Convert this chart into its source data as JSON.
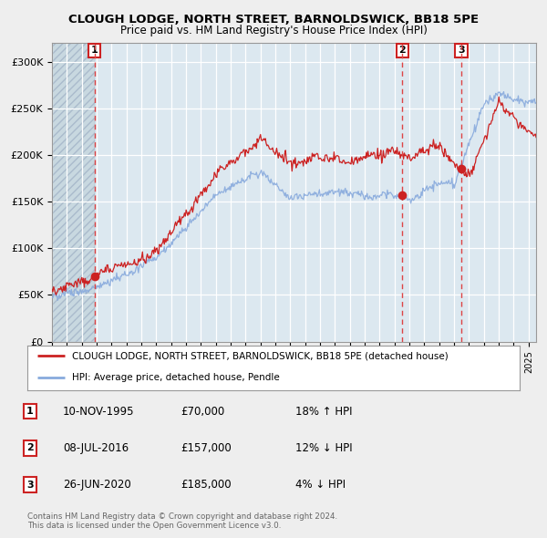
{
  "title": "CLOUGH LODGE, NORTH STREET, BARNOLDSWICK, BB18 5PE",
  "subtitle": "Price paid vs. HM Land Registry's House Price Index (HPI)",
  "ylim": [
    0,
    320000
  ],
  "yticks": [
    0,
    50000,
    100000,
    150000,
    200000,
    250000,
    300000
  ],
  "ytick_labels": [
    "£0",
    "£50K",
    "£100K",
    "£150K",
    "£200K",
    "£250K",
    "£300K"
  ],
  "sale_color": "#cc2222",
  "hpi_color": "#88aadd",
  "background_color": "#f0f0f0",
  "plot_bg_color": "#dce8f0",
  "grid_color": "#ffffff",
  "sale_points": [
    {
      "date": 1995.86,
      "price": 70000,
      "label": "1"
    },
    {
      "date": 2016.52,
      "price": 157000,
      "label": "2"
    },
    {
      "date": 2020.48,
      "price": 185000,
      "label": "3"
    }
  ],
  "vline_dates": [
    1995.86,
    2016.52,
    2020.48
  ],
  "legend_line1": "CLOUGH LODGE, NORTH STREET, BARNOLDSWICK, BB18 5PE (detached house)",
  "legend_line2": "HPI: Average price, detached house, Pendle",
  "table_rows": [
    [
      "1",
      "10-NOV-1995",
      "£70,000",
      "18% ↑ HPI"
    ],
    [
      "2",
      "08-JUL-2016",
      "£157,000",
      "12% ↓ HPI"
    ],
    [
      "3",
      "26-JUN-2020",
      "£185,000",
      "4% ↓ HPI"
    ]
  ],
  "copyright_text": "Contains HM Land Registry data © Crown copyright and database right 2024.\nThis data is licensed under the Open Government Licence v3.0.",
  "xmin": 1993.0,
  "xmax": 2025.5,
  "hatch_xmin": 1993.0,
  "hatch_xmax": 1995.86
}
